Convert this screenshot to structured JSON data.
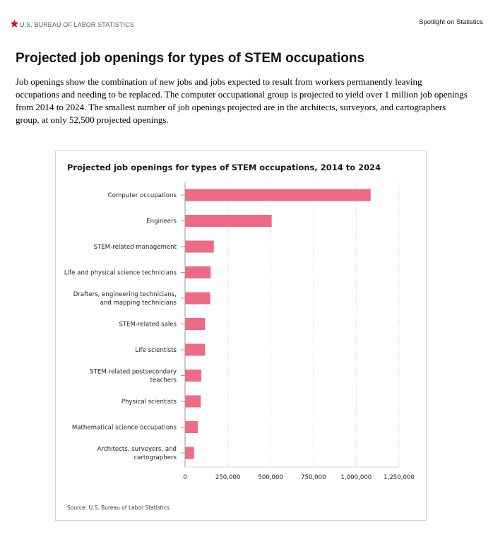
{
  "header": {
    "agency": "U.S. BUREAU OF LABOR STATISTICS",
    "series": "Spotlight on Statistics"
  },
  "article": {
    "title": "Projected job openings for types of STEM occupations",
    "paragraph": "Job openings show the combination of new jobs and jobs expected to result from workers permanently leaving occupations and needing to be replaced. The computer occupational group is projected to yield over 1 million job openings from 2014 to 2024. The smallest number of job openings projected are in the architects, surveyors, and cartographers group, at only 52,500 projected openings."
  },
  "colors": {
    "bar": "#ee6b86",
    "star": "#c8102e",
    "grid": "#cfcfcf"
  },
  "chart_data": {
    "type": "bar",
    "orientation": "horizontal",
    "title": "Projected job openings for types of STEM occupations, 2014 to 2024",
    "source": "Source: U.S. Bureau of Labor Statistics.",
    "categories": [
      [
        "Computer occupations"
      ],
      [
        "Engineers"
      ],
      [
        "STEM-related management"
      ],
      [
        "Life and physical science technicians"
      ],
      [
        "Drafters, engineering technicians,",
        "and mapping technicians"
      ],
      [
        "STEM-related sales"
      ],
      [
        "Life scientists"
      ],
      [
        "STEM-related postsecondary",
        "teachers"
      ],
      [
        "Physical scientists"
      ],
      [
        "Mathematical science occupations"
      ],
      [
        "Architects, surveyors, and",
        "cartographers"
      ]
    ],
    "values": [
      1084000,
      506000,
      168000,
      150000,
      147000,
      117000,
      117000,
      95000,
      92000,
      75000,
      52500
    ],
    "xlim": [
      0,
      1250000
    ],
    "xticks": [
      0,
      250000,
      500000,
      750000,
      1000000,
      1250000
    ],
    "xtick_labels": [
      "0",
      "250,000",
      "500,000",
      "750,000",
      "1,000,000",
      "1,250,000"
    ],
    "grid": "vertical dotted",
    "legend": "none"
  }
}
